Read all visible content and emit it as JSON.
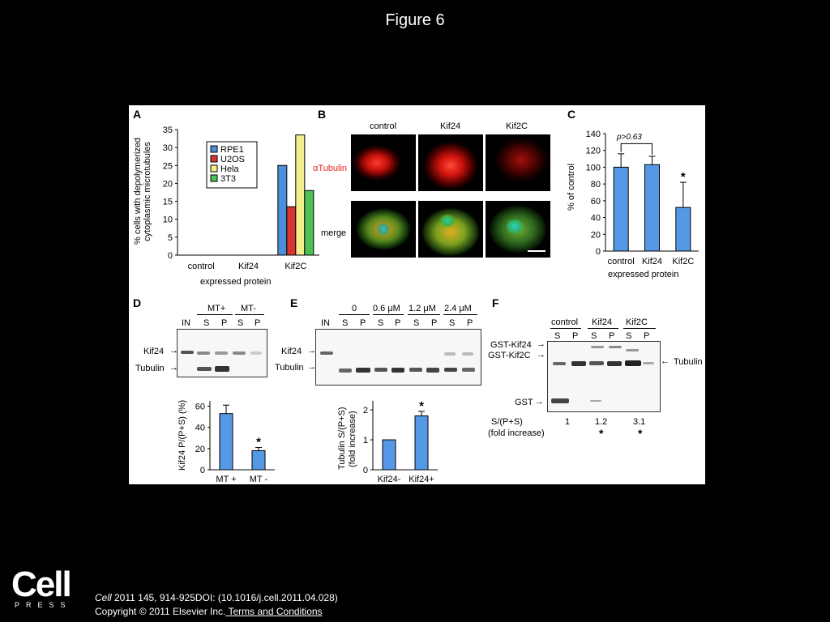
{
  "page": {
    "title": "Figure 6",
    "citation_journal": "Cell",
    "citation_rest": " 2011 145, 914-925DOI: (10.1016/j.cell.2011.04.028)",
    "copyright": "Copyright © 2011 Elsevier Inc.",
    "terms_link": " Terms and Conditions",
    "logo_word": "Cell",
    "logo_press": "PRESS"
  },
  "panels": {
    "A": {
      "letter": "A",
      "ylabel_1": "% cells with depolymerized",
      "ylabel_2": "cytoplasmic microtubules",
      "xlabel": "expressed protein"
    },
    "B": {
      "letter": "B",
      "cols": [
        "control",
        "Kif24",
        "Kif2C"
      ],
      "row1": "αTubulin",
      "row2": "merge"
    },
    "C": {
      "letter": "C",
      "ylabel": "% of control",
      "xlabel": "expressed protein",
      "pval": "p>0.63",
      "star": "*"
    },
    "D": {
      "letter": "D",
      "mt_plus": "MT+",
      "mt_minus": "MT-",
      "lanes": [
        "IN",
        "S",
        "P",
        "S",
        "P"
      ],
      "row1": "Kif24",
      "row2": "Tubulin",
      "ylabel": "Kif24 P/(P+S)  (%)",
      "star": "*"
    },
    "E": {
      "letter": "E",
      "conc": [
        "0",
        "0.6 μM",
        "1.2 μM",
        "2.4 μM"
      ],
      "lanes": [
        "IN",
        "S",
        "P",
        "S",
        "P",
        "S",
        "P",
        "S",
        "P"
      ],
      "row1": "Kif24",
      "row2": "Tubulin",
      "ylabel_1": "Tubulin S/(P+S)",
      "ylabel_2": "(fold increase)",
      "star": "*"
    },
    "F": {
      "letter": "F",
      "groups": [
        "control",
        "Kif24",
        "Kif2C"
      ],
      "lanes": [
        "S",
        "P",
        "S",
        "P",
        "S",
        "P"
      ],
      "row1": "GST-Kif24",
      "row2": "GST-Kif2C",
      "row3": "GST",
      "right": "Tubulin",
      "ratio_label_1": "S/(P+S)",
      "ratio_label_2": "(fold increase)",
      "ratios": [
        "1",
        "1.2",
        "3.1"
      ],
      "star": "*"
    }
  },
  "colors": {
    "rpe1": "#4a90d9",
    "u2os": "#d9352f",
    "hela": "#f4ee8c",
    "t3": "#4cc155",
    "bar": "#5599e6"
  },
  "chart_data": [
    {
      "type": "bar",
      "categories": [
        "control",
        "Kif24",
        "Kif2C"
      ],
      "series": [
        {
          "name": "RPE1",
          "values": [
            0,
            0,
            25
          ]
        },
        {
          "name": "U2OS",
          "values": [
            0,
            0,
            13.5
          ]
        },
        {
          "name": "Hela",
          "values": [
            0,
            0,
            33.5
          ]
        },
        {
          "name": "3T3",
          "values": [
            0,
            0,
            18
          ]
        }
      ],
      "yticks": [
        "0",
        "5",
        "10",
        "15",
        "20",
        "25",
        "30",
        "35"
      ],
      "ylim": [
        0,
        35
      ],
      "legend": "top-center"
    },
    {
      "type": "bar",
      "categories": [
        "control",
        "Kif24",
        "Kif2C"
      ],
      "values": [
        100,
        103,
        52
      ],
      "errors": [
        16,
        10,
        30
      ],
      "yticks": [
        "0",
        "20",
        "40",
        "60",
        "80",
        "100",
        "120",
        "140"
      ],
      "ylim": [
        0,
        140
      ]
    },
    {
      "type": "bar",
      "categories": [
        "MT +",
        "MT -"
      ],
      "values": [
        53,
        18
      ],
      "errors": [
        8,
        3
      ],
      "yticks": [
        "0",
        "20",
        "40",
        "60"
      ],
      "ylim": [
        0,
        65
      ]
    },
    {
      "type": "bar",
      "categories": [
        "Kif24-",
        "Kif24+"
      ],
      "values": [
        1,
        1.8
      ],
      "errors": [
        0,
        0.15
      ],
      "yticks": [
        "0",
        "1",
        "2"
      ],
      "ylim": [
        0,
        2.3
      ]
    }
  ]
}
